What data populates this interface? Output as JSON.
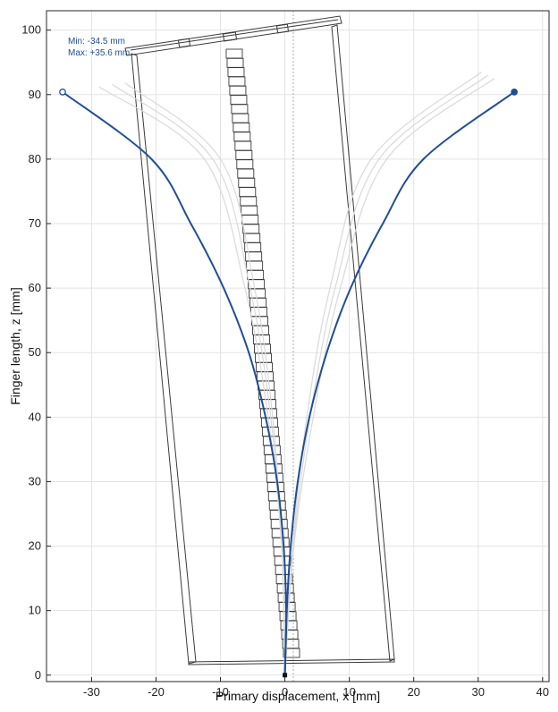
{
  "colors": {
    "deflection": "#1f4e96",
    "envelope": "#d9d9d9",
    "structure": "#3a3a3a",
    "grid": "#e3e3e3",
    "axis": "#262626"
  },
  "chart_data": {
    "type": "line",
    "title": "",
    "xlabel": "Primary displacement, x [mm]",
    "ylabel": "Finger length, z [mm]",
    "xlim": [
      -37,
      41
    ],
    "ylim": [
      -1,
      103
    ],
    "xticks": [
      -30,
      -20,
      -10,
      0,
      10,
      20,
      30,
      40
    ],
    "yticks": [
      0,
      10,
      20,
      30,
      40,
      50,
      60,
      70,
      80,
      90,
      100
    ],
    "grid": true,
    "annotations": {
      "min": "Min: -34.5 mm",
      "max": "Max: +35.6 mm"
    },
    "series": [
      {
        "role": "min-deflection",
        "points": [
          [
            0,
            0
          ],
          [
            0.2,
            10
          ],
          [
            -0.2,
            20
          ],
          [
            -1.2,
            30
          ],
          [
            -3,
            40
          ],
          [
            -5.6,
            50
          ],
          [
            -9.5,
            60
          ],
          [
            -14.6,
            70
          ],
          [
            -20.7,
            80
          ],
          [
            -34.5,
            90.4
          ]
        ],
        "end_marker": "open"
      },
      {
        "role": "max-deflection",
        "points": [
          [
            0,
            0
          ],
          [
            0.3,
            10
          ],
          [
            0.9,
            20
          ],
          [
            2,
            30
          ],
          [
            3.8,
            40
          ],
          [
            6.5,
            50
          ],
          [
            10.2,
            60
          ],
          [
            15.2,
            70
          ],
          [
            21.5,
            80
          ],
          [
            35.6,
            90.4
          ]
        ],
        "end_marker": "filled"
      },
      {
        "role": "envelope",
        "points": [
          [
            0,
            0
          ],
          [
            -0.5,
            20
          ],
          [
            -2.6,
            40
          ],
          [
            -6.2,
            60
          ],
          [
            -12.5,
            80
          ],
          [
            -28.8,
            91.2
          ]
        ]
      },
      {
        "role": "envelope",
        "points": [
          [
            0,
            0
          ],
          [
            -0.5,
            20
          ],
          [
            -2.2,
            40
          ],
          [
            -5.4,
            60
          ],
          [
            -11.2,
            80
          ],
          [
            -26.8,
            91.6
          ]
        ]
      },
      {
        "role": "envelope",
        "points": [
          [
            0,
            0
          ],
          [
            -0.5,
            20
          ],
          [
            -1.9,
            40
          ],
          [
            -4.7,
            60
          ],
          [
            -10,
            80
          ],
          [
            -24.8,
            91.8
          ]
        ]
      },
      {
        "role": "envelope",
        "points": [
          [
            0,
            0
          ],
          [
            1.2,
            20
          ],
          [
            3.4,
            40
          ],
          [
            7,
            60
          ],
          [
            13.4,
            80
          ],
          [
            30.5,
            93.5
          ]
        ]
      },
      {
        "role": "envelope",
        "points": [
          [
            0,
            0
          ],
          [
            1.3,
            20
          ],
          [
            3.9,
            40
          ],
          [
            7.8,
            60
          ],
          [
            14.6,
            80
          ],
          [
            31.5,
            93
          ]
        ]
      },
      {
        "role": "envelope",
        "points": [
          [
            0,
            0
          ],
          [
            1.4,
            20
          ],
          [
            4.4,
            40
          ],
          [
            8.6,
            60
          ],
          [
            15.8,
            80
          ],
          [
            32.5,
            92.5
          ]
        ]
      }
    ]
  }
}
